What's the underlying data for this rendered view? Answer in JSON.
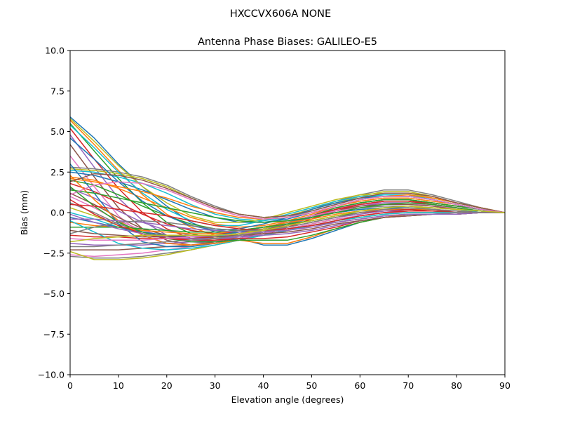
{
  "chart_data": {
    "type": "line",
    "suptitle": "HXCCVX606A      NONE",
    "title": "Antenna Phase Biases: GALILEO-E5",
    "xlabel": "Elevation angle (degrees)",
    "ylabel": "Bias (mm)",
    "xlim": [
      0,
      90
    ],
    "ylim": [
      -10.0,
      10.0
    ],
    "xticks": [
      0,
      10,
      20,
      30,
      40,
      50,
      60,
      70,
      80,
      90
    ],
    "xtick_labels": [
      "0",
      "10",
      "20",
      "30",
      "40",
      "50",
      "60",
      "70",
      "80",
      "90"
    ],
    "yticks": [
      -10.0,
      -7.5,
      -5.0,
      -2.5,
      0.0,
      2.5,
      5.0,
      7.5,
      10.0
    ],
    "ytick_labels": [
      "−10.0",
      "−7.5",
      "−5.0",
      "−2.5",
      "0.0",
      "2.5",
      "5.0",
      "7.5",
      "10.0"
    ],
    "grid": false,
    "legend": false,
    "x": [
      0,
      5,
      10,
      15,
      20,
      25,
      30,
      35,
      40,
      45,
      50,
      55,
      60,
      65,
      70,
      75,
      80,
      85,
      90
    ],
    "colors": [
      "#1f77b4",
      "#ff7f0e",
      "#2ca02c",
      "#d62728",
      "#9467bd",
      "#8c564b",
      "#e377c2",
      "#7f7f7f",
      "#bcbd22",
      "#17becf"
    ],
    "series": [
      {
        "values": [
          5.9,
          4.6,
          3.0,
          1.6,
          0.4,
          -0.6,
          -1.2,
          -1.4,
          -1.2,
          -0.7,
          -0.2,
          0.3,
          0.6,
          0.8,
          0.8,
          0.6,
          0.4,
          0.2,
          0.0
        ]
      },
      {
        "values": [
          5.7,
          4.2,
          2.6,
          1.1,
          -0.1,
          -0.9,
          -1.4,
          -1.5,
          -1.3,
          -0.8,
          -0.3,
          0.2,
          0.5,
          0.7,
          0.7,
          0.5,
          0.3,
          0.1,
          0.0
        ]
      },
      {
        "values": [
          5.5,
          3.8,
          2.1,
          0.6,
          -0.6,
          -1.3,
          -1.6,
          -1.6,
          -1.3,
          -0.8,
          -0.3,
          0.2,
          0.6,
          0.8,
          0.8,
          0.6,
          0.4,
          0.2,
          0.0
        ]
      },
      {
        "values": [
          5.2,
          3.3,
          1.5,
          0.0,
          -1.0,
          -1.6,
          -1.8,
          -1.7,
          -1.4,
          -0.9,
          -0.4,
          0.1,
          0.5,
          0.7,
          0.7,
          0.6,
          0.4,
          0.2,
          0.0
        ]
      },
      {
        "values": [
          4.8,
          2.8,
          0.9,
          -0.5,
          -1.4,
          -1.8,
          -1.9,
          -1.7,
          -1.3,
          -0.8,
          -0.3,
          0.2,
          0.5,
          0.7,
          0.7,
          0.5,
          0.3,
          0.1,
          0.0
        ]
      },
      {
        "values": [
          4.2,
          2.2,
          0.3,
          -1.0,
          -1.7,
          -2.0,
          -1.9,
          -1.6,
          -1.2,
          -0.7,
          -0.2,
          0.2,
          0.5,
          0.6,
          0.6,
          0.5,
          0.3,
          0.1,
          0.0
        ]
      },
      {
        "values": [
          3.5,
          1.6,
          -0.2,
          -1.4,
          -1.9,
          -2.0,
          -1.8,
          -1.4,
          -1.0,
          -0.5,
          -0.1,
          0.3,
          0.5,
          0.6,
          0.6,
          0.4,
          0.3,
          0.1,
          0.0
        ]
      },
      {
        "values": [
          2.8,
          2.7,
          2.5,
          2.2,
          1.7,
          1.0,
          0.4,
          -0.1,
          -0.3,
          -0.2,
          0.2,
          0.7,
          1.1,
          1.4,
          1.4,
          1.1,
          0.7,
          0.3,
          0.0
        ]
      },
      {
        "values": [
          2.7,
          2.6,
          2.4,
          2.1,
          1.6,
          0.9,
          0.3,
          -0.1,
          -0.3,
          -0.2,
          0.2,
          0.6,
          1.0,
          1.3,
          1.3,
          1.0,
          0.6,
          0.3,
          0.0
        ]
      },
      {
        "values": [
          2.6,
          2.5,
          2.2,
          1.8,
          1.2,
          0.5,
          -0.1,
          -0.4,
          -0.5,
          -0.3,
          0.1,
          0.5,
          0.9,
          1.1,
          1.1,
          0.9,
          0.6,
          0.3,
          0.0
        ]
      },
      {
        "values": [
          2.5,
          2.3,
          1.9,
          1.4,
          0.8,
          0.2,
          -0.3,
          -0.6,
          -0.6,
          -0.4,
          0.0,
          0.4,
          0.8,
          1.0,
          1.0,
          0.8,
          0.5,
          0.2,
          0.0
        ]
      },
      {
        "values": [
          2.2,
          2.0,
          1.5,
          0.9,
          0.3,
          -0.3,
          -0.7,
          -0.9,
          -0.8,
          -0.5,
          -0.1,
          0.4,
          0.7,
          0.9,
          0.9,
          0.7,
          0.5,
          0.2,
          0.0
        ]
      },
      {
        "values": [
          2.0,
          1.7,
          1.1,
          0.4,
          -0.2,
          -0.7,
          -1.0,
          -1.1,
          -0.9,
          -0.6,
          -0.2,
          0.3,
          0.6,
          0.8,
          0.8,
          0.6,
          0.4,
          0.2,
          0.0
        ]
      },
      {
        "values": [
          1.8,
          1.3,
          0.6,
          -0.1,
          -0.7,
          -1.1,
          -1.3,
          -1.2,
          -1.0,
          -0.6,
          -0.2,
          0.2,
          0.5,
          0.7,
          0.7,
          0.5,
          0.3,
          0.1,
          0.0
        ]
      },
      {
        "values": [
          1.5,
          0.9,
          0.1,
          -0.6,
          -1.1,
          -1.4,
          -1.5,
          -1.4,
          -1.1,
          -0.7,
          -0.3,
          0.1,
          0.4,
          0.6,
          0.6,
          0.5,
          0.3,
          0.1,
          0.0
        ]
      },
      {
        "values": [
          1.2,
          0.5,
          -0.3,
          -1.0,
          -1.4,
          -1.6,
          -1.6,
          -1.4,
          -1.1,
          -0.7,
          -0.3,
          0.1,
          0.4,
          0.5,
          0.5,
          0.4,
          0.2,
          0.1,
          0.0
        ]
      },
      {
        "values": [
          1.0,
          0.3,
          -0.5,
          -1.1,
          -1.5,
          -1.6,
          -1.5,
          -1.3,
          -1.0,
          -0.6,
          -0.2,
          0.1,
          0.3,
          0.4,
          0.4,
          0.3,
          0.2,
          0.1,
          0.0
        ]
      },
      {
        "values": [
          0.6,
          0.0,
          -0.7,
          -1.2,
          -1.6,
          -1.7,
          -1.6,
          -1.4,
          -1.0,
          -0.7,
          -0.3,
          0.0,
          0.3,
          0.4,
          0.4,
          0.3,
          0.2,
          0.1,
          0.0
        ]
      },
      {
        "values": [
          0.3,
          -0.2,
          -0.8,
          -1.3,
          -1.6,
          -1.7,
          -1.6,
          -1.3,
          -1.0,
          -0.6,
          -0.3,
          0.0,
          0.2,
          0.3,
          0.3,
          0.3,
          0.2,
          0.1,
          0.0
        ]
      },
      {
        "values": [
          0.0,
          -0.4,
          -0.9,
          -1.3,
          -1.6,
          -1.6,
          -1.5,
          -1.2,
          -0.9,
          -0.6,
          -0.3,
          0.0,
          0.2,
          0.3,
          0.3,
          0.2,
          0.1,
          0.1,
          0.0
        ]
      },
      {
        "values": [
          -0.3,
          -0.6,
          -0.9,
          -1.2,
          -1.4,
          -1.5,
          -1.4,
          -1.2,
          -0.9,
          -0.6,
          -0.3,
          0.0,
          0.2,
          0.3,
          0.3,
          0.2,
          0.1,
          0.0,
          0.0
        ]
      },
      {
        "values": [
          -0.6,
          -0.8,
          -0.9,
          -1.1,
          -1.2,
          -1.3,
          -1.3,
          -1.1,
          -0.9,
          -0.6,
          -0.4,
          -0.1,
          0.1,
          0.2,
          0.2,
          0.2,
          0.1,
          0.0,
          0.0
        ]
      },
      {
        "values": [
          -0.9,
          -0.9,
          -0.9,
          -1.0,
          -1.1,
          -1.2,
          -1.2,
          -1.1,
          -0.9,
          -0.7,
          -0.5,
          -0.2,
          0.0,
          0.1,
          0.2,
          0.1,
          0.1,
          0.0,
          0.0
        ]
      },
      {
        "values": [
          -1.4,
          -1.5,
          -1.5,
          -1.6,
          -1.6,
          -1.6,
          -1.5,
          -1.4,
          -1.2,
          -0.9,
          -0.6,
          -0.3,
          0.0,
          0.1,
          0.2,
          0.1,
          0.1,
          0.0,
          0.0
        ]
      },
      {
        "values": [
          -1.9,
          -2.0,
          -2.0,
          -2.0,
          -1.9,
          -1.8,
          -1.7,
          -1.5,
          -1.2,
          -0.9,
          -0.6,
          -0.3,
          -0.1,
          0.1,
          0.1,
          0.1,
          0.0,
          0.0,
          0.0
        ]
      },
      {
        "values": [
          -2.3,
          -2.3,
          -2.3,
          -2.2,
          -2.1,
          -2.0,
          -1.8,
          -1.6,
          -1.3,
          -1.0,
          -0.7,
          -0.4,
          -0.2,
          0.0,
          0.1,
          0.1,
          0.0,
          0.0,
          0.0
        ]
      },
      {
        "values": [
          -2.6,
          -2.7,
          -2.6,
          -2.5,
          -2.3,
          -2.1,
          -1.9,
          -1.6,
          -1.3,
          -1.0,
          -0.7,
          -0.4,
          -0.2,
          0.0,
          0.0,
          0.0,
          0.0,
          0.0,
          0.0
        ]
      },
      {
        "values": [
          -2.7,
          -2.8,
          -2.8,
          -2.7,
          -2.5,
          -2.3,
          -2.0,
          -1.7,
          -1.4,
          -1.1,
          -0.8,
          -0.5,
          -0.3,
          -0.1,
          0.0,
          0.0,
          0.0,
          0.0,
          0.0
        ]
      },
      {
        "values": [
          -2.4,
          -2.9,
          -2.9,
          -2.8,
          -2.6,
          -2.3,
          -2.0,
          -1.7,
          -1.4,
          -1.1,
          -0.8,
          -0.5,
          -0.3,
          -0.1,
          0.0,
          0.0,
          0.0,
          0.0,
          0.0
        ]
      },
      {
        "values": [
          -0.5,
          -1.2,
          -1.9,
          -2.2,
          -2.3,
          -2.2,
          -2.0,
          -1.7,
          -1.4,
          -1.1,
          -0.8,
          -0.5,
          -0.3,
          -0.1,
          0.0,
          0.0,
          0.0,
          0.0,
          0.0
        ]
      },
      {
        "values": [
          3.0,
          1.2,
          -0.7,
          -1.8,
          -2.1,
          -2.1,
          -1.9,
          -1.6,
          -2.0,
          -2.0,
          -1.6,
          -1.1,
          -0.6,
          -0.3,
          -0.1,
          -0.1,
          -0.1,
          0.0,
          0.0
        ]
      },
      {
        "values": [
          2.3,
          0.8,
          -0.5,
          -1.4,
          -1.9,
          -2.0,
          -1.9,
          -1.7,
          -1.9,
          -1.9,
          -1.5,
          -1.0,
          -0.6,
          -0.3,
          -0.1,
          -0.1,
          -0.1,
          0.0,
          0.0
        ]
      },
      {
        "values": [
          1.6,
          0.4,
          -0.6,
          -1.2,
          -1.6,
          -1.8,
          -1.8,
          -1.7,
          -1.7,
          -1.7,
          -1.4,
          -1.0,
          -0.6,
          -0.3,
          -0.2,
          -0.1,
          -0.1,
          0.0,
          0.0
        ]
      },
      {
        "values": [
          0.8,
          -0.1,
          -0.8,
          -1.3,
          -1.6,
          -1.7,
          -1.7,
          -1.6,
          -1.6,
          -1.5,
          -1.2,
          -0.9,
          -0.5,
          -0.3,
          -0.2,
          -0.1,
          -0.1,
          0.0,
          0.0
        ]
      },
      {
        "values": [
          -0.1,
          -0.6,
          -1.0,
          -1.3,
          -1.5,
          -1.6,
          -1.6,
          -1.5,
          -1.4,
          -1.3,
          -1.1,
          -0.8,
          -0.5,
          -0.3,
          -0.2,
          -0.1,
          -0.1,
          0.0,
          0.0
        ]
      },
      {
        "values": [
          -1.1,
          -1.3,
          -1.4,
          -1.5,
          -1.5,
          -1.5,
          -1.5,
          -1.4,
          -1.3,
          -1.2,
          -1.0,
          -0.7,
          -0.5,
          -0.3,
          -0.2,
          -0.1,
          -0.1,
          0.0,
          0.0
        ]
      },
      {
        "values": [
          -1.6,
          -1.7,
          -1.7,
          -1.7,
          -1.6,
          -1.5,
          -1.4,
          -1.3,
          -1.2,
          -1.0,
          -0.8,
          -0.6,
          -0.4,
          -0.2,
          -0.1,
          -0.1,
          0.0,
          0.0,
          0.0
        ]
      },
      {
        "values": [
          -2.1,
          -2.1,
          -2.0,
          -1.9,
          -1.8,
          -1.7,
          -1.6,
          -1.4,
          -1.2,
          -1.0,
          -0.8,
          -0.6,
          -0.4,
          -0.2,
          -0.1,
          -0.1,
          0.0,
          0.0,
          0.0
        ]
      },
      {
        "values": [
          5.8,
          4.4,
          2.9,
          1.6,
          0.6,
          -0.2,
          -0.6,
          -0.6,
          -0.4,
          0.0,
          0.4,
          0.8,
          1.1,
          1.2,
          1.2,
          0.9,
          0.6,
          0.3,
          0.0
        ]
      },
      {
        "values": [
          5.4,
          4.0,
          2.5,
          1.2,
          0.2,
          -0.5,
          -0.8,
          -0.8,
          -0.5,
          -0.1,
          0.3,
          0.7,
          1.0,
          1.1,
          1.1,
          0.8,
          0.5,
          0.2,
          0.0
        ]
      },
      {
        "values": [
          4.6,
          3.3,
          1.9,
          0.7,
          -0.2,
          -0.8,
          -1.1,
          -1.0,
          -0.7,
          -0.3,
          0.2,
          0.6,
          0.9,
          1.0,
          1.0,
          0.8,
          0.5,
          0.2,
          0.0
        ]
      },
      {
        "values": [
          2.1,
          1.9,
          1.6,
          1.3,
          0.9,
          0.4,
          0.0,
          -0.3,
          -0.4,
          -0.3,
          0.0,
          0.4,
          0.8,
          1.0,
          1.1,
          0.9,
          0.6,
          0.3,
          0.0
        ]
      },
      {
        "values": [
          1.4,
          1.2,
          0.9,
          0.6,
          0.3,
          0.0,
          -0.3,
          -0.5,
          -0.6,
          -0.5,
          -0.3,
          0.0,
          0.3,
          0.5,
          0.6,
          0.5,
          0.3,
          0.1,
          0.0
        ]
      },
      {
        "values": [
          0.5,
          0.4,
          0.2,
          0.0,
          -0.2,
          -0.5,
          -0.8,
          -1.0,
          -1.1,
          -1.0,
          -0.8,
          -0.5,
          -0.2,
          0.0,
          0.1,
          0.1,
          0.1,
          0.0,
          0.0
        ]
      },
      {
        "values": [
          -0.4,
          -0.4,
          -0.5,
          -0.6,
          -0.8,
          -1.0,
          -1.1,
          -1.2,
          -1.2,
          -1.1,
          -0.9,
          -0.6,
          -0.4,
          -0.2,
          -0.1,
          -0.1,
          -0.1,
          0.0,
          0.0
        ]
      },
      {
        "values": [
          1.9,
          2.4,
          2.3,
          2.0,
          1.5,
          0.9,
          0.3,
          -0.1,
          -0.3,
          -0.2,
          0.1,
          0.5,
          0.9,
          1.2,
          1.2,
          1.0,
          0.6,
          0.3,
          0.0
        ]
      },
      {
        "values": [
          1.1,
          1.7,
          1.9,
          1.8,
          1.4,
          0.8,
          0.2,
          -0.2,
          -0.4,
          -0.3,
          0.0,
          0.4,
          0.8,
          1.0,
          1.0,
          0.8,
          0.5,
          0.2,
          0.0
        ]
      },
      {
        "values": [
          -1.3,
          -0.9,
          -0.6,
          -0.5,
          -0.6,
          -0.8,
          -1.0,
          -1.1,
          -1.1,
          -0.9,
          -0.6,
          -0.3,
          0.0,
          0.2,
          0.3,
          0.2,
          0.1,
          0.0,
          0.0
        ]
      },
      {
        "values": [
          -1.8,
          -1.6,
          -1.5,
          -1.4,
          -1.4,
          -1.4,
          -1.4,
          -1.3,
          -1.1,
          -0.8,
          -0.5,
          -0.2,
          0.1,
          0.3,
          0.4,
          0.3,
          0.2,
          0.1,
          0.0
        ]
      }
    ]
  }
}
